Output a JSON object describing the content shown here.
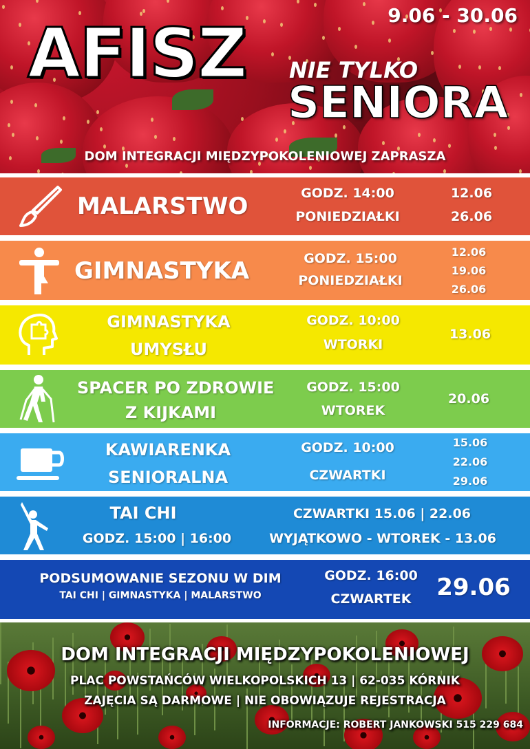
{
  "header": {
    "title": "AFISZ",
    "dates": "9.06 - 30.06",
    "subtitle_small": "NIE TYLKO",
    "subtitle_big": "SENIORA",
    "invite": "DOM INTEGRACJI MIĘDZYPOKOLENIOWEJ ZAPRASZA"
  },
  "rows": {
    "malarstwo": {
      "name": "MALARSTWO",
      "time": "GODZ. 14:00",
      "days": "PONIEDZIAŁKI",
      "date1": "12.06",
      "date2": "26.06",
      "color": "#e0533a",
      "icon": "paintbrush-icon"
    },
    "gimnastyka": {
      "name": "GIMNASTYKA",
      "time": "GODZ. 15:00",
      "days": "PONIEDZIAŁKI",
      "date1": "12.06",
      "date2": "19.06",
      "date3": "26.06",
      "color": "#f78a4b",
      "icon": "exercise-figure-icon"
    },
    "umyslu": {
      "name1": "GIMNASTYKA",
      "name2": "UMYSŁU",
      "time": "GODZ. 10:00",
      "days": "WTORKI",
      "date1": "13.06",
      "color": "#f5e800",
      "icon": "head-puzzle-icon"
    },
    "spacer": {
      "name1": "SPACER PO ZDROWIE",
      "name2": "Z KIJKAMI",
      "time": "GODZ. 15:00",
      "days": "WTOREK",
      "date1": "20.06",
      "color": "#7dcc4d",
      "icon": "nordic-walking-icon"
    },
    "kawiarenka": {
      "name1": "KAWIARENKA",
      "name2": "SENIORALNA",
      "time": "GODZ. 10:00",
      "days": "CZWARTKI",
      "date1": "15.06",
      "date2": "22.06",
      "date3": "29.06",
      "color": "#3aabf0",
      "icon": "coffee-cup-icon"
    },
    "taichi": {
      "name": "TAI CHI",
      "hours": "GODZ. 15:00 | 16:00",
      "dates": "CZWARTKI 15.06 | 22.06",
      "exception": "WYJĄTKOWO - WTOREK - 13.06",
      "color": "#1f8bd6",
      "icon": "tai-chi-figure-icon"
    },
    "podsumowanie": {
      "name": "PODSUMOWANIE SEZONU W DIM",
      "sub": "TAI CHI | GIMNASTYKA | MALARSTWO",
      "time": "GODZ. 16:00",
      "days": "CZWARTEK",
      "date": "29.06",
      "color": "#1448b4"
    }
  },
  "footer": {
    "org": "DOM INTEGRACJI MIĘDZYPOKOLENIOWEJ",
    "address": "PLAC POWSTAŃCÓW WIELKOPOLSKICH 13  | 62-035 KÓRNIK",
    "free": "ZAJĘCIA SĄ DARMOWE | NIE OBOWIĄZUJE REJESTRACJA",
    "info": "INFORMACJE: ROBERT JANKOWSKI 515 229 684"
  }
}
